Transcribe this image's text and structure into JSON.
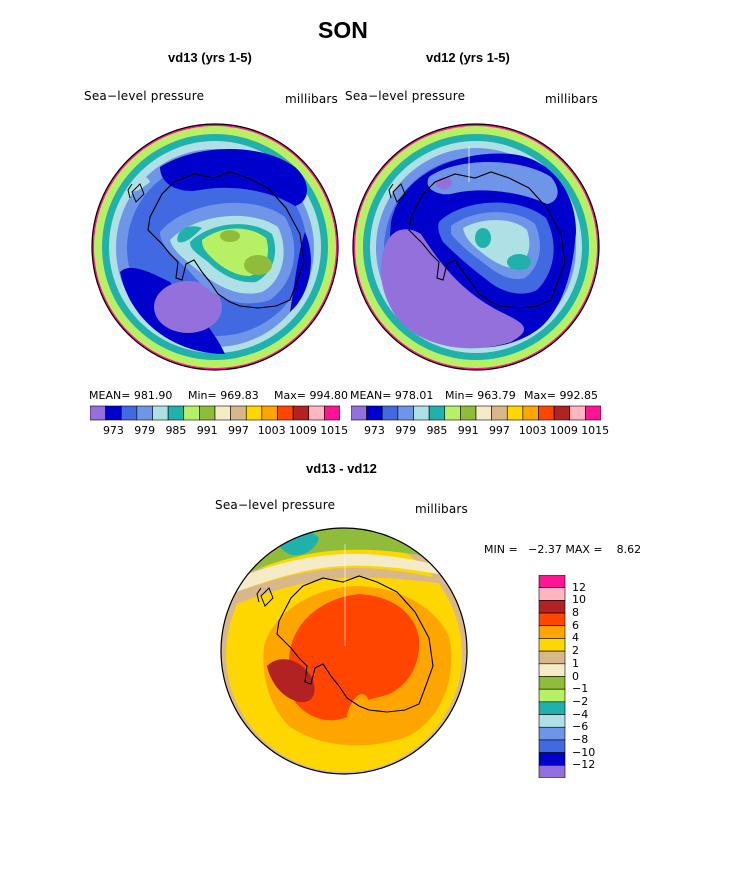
{
  "page": {
    "season_title": "SON"
  },
  "panels": [
    {
      "title": "vd13 (yrs 1-5)",
      "variable": "Sea−level pressure",
      "units": "millibars",
      "stats": {
        "mean_label": "MEAN= 981.90",
        "min_label": "Min= 969.83",
        "max_label": "Max= 994.80"
      },
      "colorbar_ticks": [
        "973",
        "979",
        "985",
        "991",
        "997",
        "1003",
        "1009",
        "1015"
      ]
    },
    {
      "title": "vd12 (yrs 1-5)",
      "variable": "Sea−level pressure",
      "units": "millibars",
      "stats": {
        "mean_label": "MEAN= 978.01",
        "min_label": "Min= 963.79",
        "max_label": "Max= 992.85"
      },
      "colorbar_ticks": [
        "973",
        "979",
        "985",
        "991",
        "997",
        "1003",
        "1009",
        "1015"
      ]
    },
    {
      "title": "vd13 - vd12",
      "variable": "Sea−level pressure",
      "units": "millibars",
      "stats": {
        "minmax_label": "MIN =   −2.37 MAX =    8.62"
      },
      "colorbar_ticks": [
        "12",
        "10",
        "8",
        "6",
        "4",
        "2",
        "1",
        "0",
        "−1",
        "−2",
        "−4",
        "−6",
        "−8",
        "−10",
        "−12"
      ]
    }
  ],
  "colors": {
    "abs_scale": [
      "#9370db",
      "#0000cd",
      "#4169e1",
      "#6f95e8",
      "#aee0e6",
      "#20b2aa",
      "#b7f064",
      "#8fbc3a",
      "#f5ebc7",
      "#d8b88a",
      "#ffd700",
      "#ffa500",
      "#ff4500",
      "#b22222",
      "#ffb6c1",
      "#ff1493"
    ],
    "diff_scale_top_to_bottom": [
      "#ff1493",
      "#ffb6c1",
      "#b22222",
      "#ff4500",
      "#ffa500",
      "#ffd700",
      "#d8b88a",
      "#f5ebc7",
      "#8fbc3a",
      "#b7f064",
      "#20b2aa",
      "#aee0e6",
      "#6f95e8",
      "#4169e1",
      "#0000cd",
      "#9370db"
    ]
  }
}
